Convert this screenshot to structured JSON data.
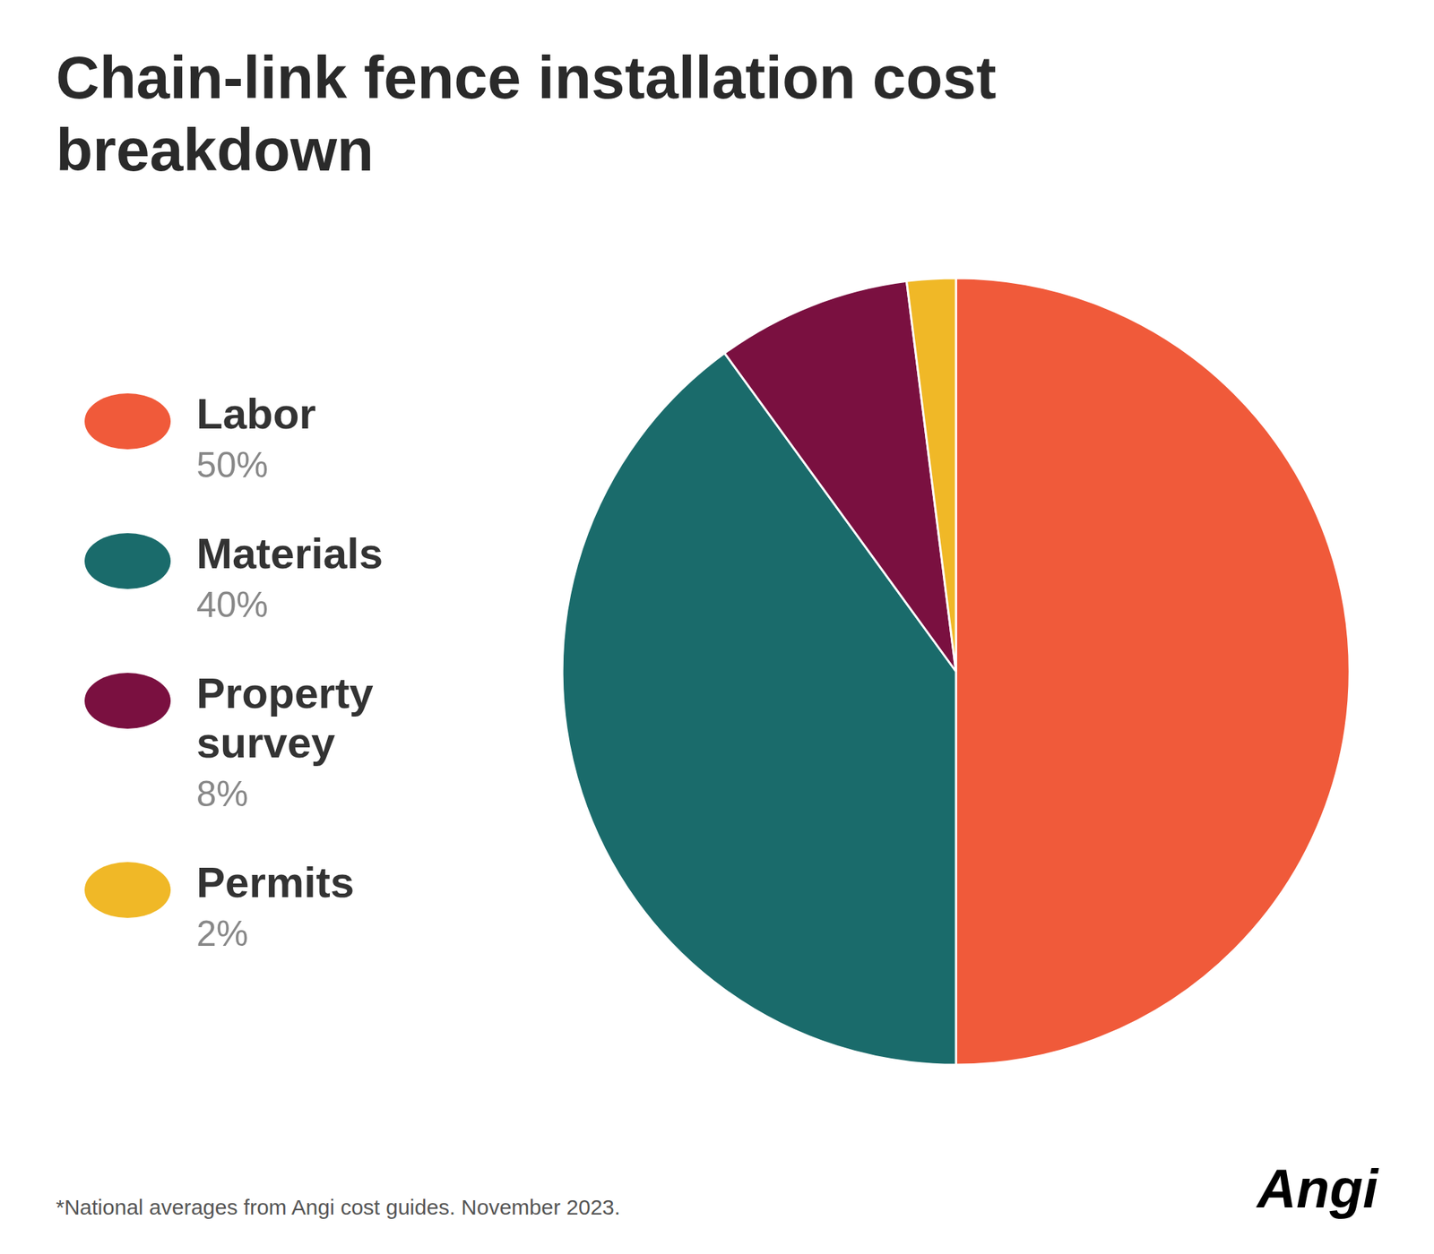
{
  "chart_data": {
    "type": "pie",
    "title": "Chain-link fence installation cost\nbreakdown",
    "categories": [
      "Labor",
      "Materials",
      "Property\nsurvey",
      "Permits"
    ],
    "values": [
      50,
      40,
      8,
      2
    ],
    "value_labels": [
      "50%",
      "40%",
      "8%",
      "2%"
    ],
    "colors": [
      "#F05A3A",
      "#1A6B6B",
      "#7A1040",
      "#F0B827"
    ],
    "legend": "left",
    "annotations": [
      "*National averages from Angi cost guides. November 2023.",
      "Angi"
    ]
  }
}
